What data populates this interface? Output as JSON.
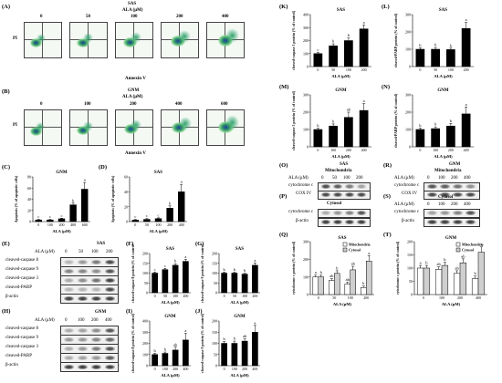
{
  "panels": {
    "A": "(A)",
    "B": "(B)",
    "C": "(C)",
    "D": "(D)",
    "E": "(E)",
    "F": "(F)",
    "G": "(G)",
    "H": "(H)",
    "I": "(I)",
    "J": "(J)",
    "K": "(K)",
    "L": "(L)",
    "M": "(M)",
    "N": "(N)",
    "O": "(O)",
    "P": "(P)",
    "Q": "(Q)",
    "R": "(R)",
    "S": "(S)",
    "T": "(T)"
  },
  "flowA": {
    "cell": "SAS",
    "ala": "ALA (μM)",
    "doses": [
      "0",
      "50",
      "100",
      "200",
      "400"
    ],
    "ylabel": "PI",
    "xlabel": "Annexin V"
  },
  "flowB": {
    "cell": "GNM",
    "ala": "ALA (μM)",
    "doses": [
      "0",
      "100",
      "200",
      "400",
      "600"
    ],
    "ylabel": "PI",
    "xlabel": "Annexin V"
  },
  "wbE": {
    "cell": "SAS",
    "ala": "ALA (μM)",
    "doses": [
      "0",
      "50",
      "100",
      "200"
    ],
    "rows": [
      "cleaved-caspase 8",
      "cleaved-caspase 9",
      "cleaved-caspase 3",
      "cleaved-PARP",
      "β-actin"
    ]
  },
  "wbH": {
    "cell": "GNM",
    "ala": "ALA (μM)",
    "doses": [
      "0",
      "100",
      "200",
      "400"
    ],
    "rows": [
      "cleaved-caspase 8",
      "cleaved-caspase 9",
      "cleaved-caspase 3",
      "cleaved-PARP",
      "β-actin"
    ]
  },
  "wbO": {
    "cell": "SAS",
    "ala": "ALA (μM)",
    "doses": [
      "0",
      "50",
      "100",
      "200"
    ],
    "fraction": "Mitochondria",
    "rows": [
      "cytochrome c",
      "COX IV"
    ]
  },
  "wbP": {
    "fraction": "Cytosol",
    "rows": [
      "cytochrome c",
      "β-actin"
    ]
  },
  "wbR": {
    "cell": "GNM",
    "ala": "ALA (μM)",
    "doses": [
      "0",
      "100",
      "200",
      "400"
    ],
    "fraction": "Mitochondria",
    "rows": [
      "cytochrome c",
      "COX IV"
    ]
  },
  "wbS": {
    "ala": "ALA (μM)",
    "doses": [
      "0",
      "100",
      "200",
      "400"
    ],
    "fraction": "Cytosol",
    "rows": [
      "cytochrome c",
      "β-actin"
    ]
  },
  "chart_data": [
    {
      "id": "C",
      "type": "bar",
      "title": "GNM",
      "categories": [
        "0",
        "100",
        "200",
        "400",
        "600"
      ],
      "values": [
        3,
        3,
        5,
        30,
        58
      ],
      "errors": [
        1,
        1,
        1,
        3,
        12
      ],
      "letters": [
        "c",
        "c",
        "c",
        "b",
        "a"
      ],
      "ylabel": "Apoptosis (% of apoptotic cells)",
      "xlabel": "ALA (μM)",
      "ylim": [
        0,
        80
      ],
      "yticks": [
        "0",
        "20",
        "40",
        "60",
        "80"
      ]
    },
    {
      "id": "D",
      "type": "bar",
      "title": "SAS",
      "categories": [
        "0",
        "50",
        "100",
        "200",
        "400"
      ],
      "values": [
        2,
        3,
        4,
        18,
        40
      ],
      "errors": [
        1,
        1,
        1,
        3,
        10
      ],
      "letters": [
        "c",
        "c",
        "c",
        "b",
        "a"
      ],
      "ylabel": "Apoptosis (% of apoptotic cells)",
      "xlabel": "ALA (μM)",
      "ylim": [
        0,
        60
      ],
      "yticks": [
        "0",
        "20",
        "40",
        "60"
      ]
    },
    {
      "id": "F",
      "type": "bar",
      "title": "SAS",
      "categories": [
        "0",
        "50",
        "100",
        "200"
      ],
      "values": [
        100,
        118,
        140,
        160
      ],
      "errors": [
        5,
        6,
        8,
        10
      ],
      "letters": [
        "c",
        "c",
        "b",
        "a"
      ],
      "ylabel": "cleaved-caspase 8 protein (% of control)",
      "xlabel": "ALA (μM)",
      "ylim": [
        0,
        200
      ],
      "yticks": [
        "0",
        "50",
        "100",
        "150",
        "200"
      ]
    },
    {
      "id": "G",
      "type": "bar",
      "title": "SAS",
      "categories": [
        "0",
        "50",
        "100",
        "200"
      ],
      "values": [
        100,
        100,
        95,
        140
      ],
      "errors": [
        5,
        5,
        5,
        12
      ],
      "letters": [
        "b",
        "b",
        "b",
        "a"
      ],
      "ylabel": "cleaved-caspase 9 protein (% of control)",
      "xlabel": "ALA (μM)",
      "ylim": [
        0,
        200
      ],
      "yticks": [
        "0",
        "50",
        "100",
        "150",
        "200"
      ]
    },
    {
      "id": "I",
      "type": "bar",
      "title": "GNM",
      "categories": [
        "0",
        "100",
        "200",
        "400"
      ],
      "values": [
        100,
        110,
        140,
        230
      ],
      "errors": [
        10,
        12,
        25,
        60
      ],
      "letters": [
        "b",
        "b",
        "ab",
        "a"
      ],
      "ylabel": "cleaved-caspase 8 protein (% of control)",
      "xlabel": "ALA (μM)",
      "ylim": [
        0,
        400
      ],
      "yticks": [
        "0",
        "100",
        "200",
        "300",
        "400"
      ]
    },
    {
      "id": "J",
      "type": "bar",
      "title": "GNM",
      "categories": [
        "0",
        "100",
        "200",
        "400"
      ],
      "values": [
        100,
        100,
        110,
        150
      ],
      "errors": [
        8,
        10,
        10,
        30
      ],
      "letters": [
        "b",
        "b",
        "ab",
        "a"
      ],
      "ylabel": "cleaved-caspase 9 protein (% of control)",
      "xlabel": "ALA (μM)",
      "ylim": [
        0,
        200
      ],
      "yticks": [
        "0",
        "50",
        "100",
        "150",
        "200"
      ]
    },
    {
      "id": "K",
      "type": "bar",
      "title": "SAS",
      "categories": [
        "0",
        "50",
        "100",
        "200"
      ],
      "values": [
        100,
        160,
        200,
        290
      ],
      "errors": [
        8,
        15,
        20,
        30
      ],
      "letters": [
        "c",
        "b",
        "b",
        "a"
      ],
      "ylabel": "cleaved-caspase 3 protein (% of control)",
      "xlabel": "ALA (μM)",
      "ylim": [
        0,
        400
      ],
      "yticks": [
        "0",
        "100",
        "200",
        "300",
        "400"
      ]
    },
    {
      "id": "L",
      "type": "bar",
      "title": "SAS",
      "categories": [
        "0",
        "50",
        "100",
        "200"
      ],
      "values": [
        100,
        100,
        98,
        220
      ],
      "errors": [
        8,
        10,
        8,
        35
      ],
      "letters": [
        "b",
        "b",
        "b",
        "a"
      ],
      "ylabel": "cleaved-PARP protein (% of control)",
      "xlabel": "ALA (μM)",
      "ylim": [
        0,
        300
      ],
      "yticks": [
        "0",
        "100",
        "200",
        "300"
      ]
    },
    {
      "id": "M",
      "type": "bar",
      "title": "GNM",
      "categories": [
        "0",
        "100",
        "200",
        "400"
      ],
      "values": [
        100,
        120,
        170,
        210
      ],
      "errors": [
        8,
        12,
        30,
        40
      ],
      "letters": [
        "b",
        "b",
        "ab",
        "a"
      ],
      "ylabel": "cleaved-caspase 3 protein (% of control)",
      "xlabel": "ALA (μM)",
      "ylim": [
        0,
        300
      ],
      "yticks": [
        "0",
        "100",
        "200",
        "300"
      ]
    },
    {
      "id": "N",
      "type": "bar",
      "title": "GNM",
      "categories": [
        "0",
        "100",
        "200",
        "400"
      ],
      "values": [
        100,
        105,
        120,
        190
      ],
      "errors": [
        8,
        10,
        15,
        40
      ],
      "letters": [
        "b",
        "b",
        "b",
        "a"
      ],
      "ylabel": "cleaved-PARP protein (% of control)",
      "xlabel": "ALA (μM)",
      "ylim": [
        0,
        300
      ],
      "yticks": [
        "0",
        "100",
        "200",
        "300"
      ]
    },
    {
      "id": "Q",
      "type": "bar",
      "title": "SAS",
      "categories": [
        "0",
        "50",
        "100",
        "200"
      ],
      "series": [
        {
          "name": "Mitochondria",
          "values": [
            100,
            80,
            60,
            40
          ],
          "errors": [
            10,
            10,
            10,
            8
          ],
          "letters": [
            "a",
            "ab",
            "ab",
            "b"
          ]
        },
        {
          "name": "Cytosol",
          "values": [
            100,
            120,
            140,
            190
          ],
          "errors": [
            10,
            15,
            20,
            30
          ],
          "letters": [
            "b",
            "b",
            "ab",
            "a"
          ]
        }
      ],
      "ylabel": "cytochrome c protein (% of control)",
      "xlabel": "ALA (μM)",
      "ylim": [
        0,
        300
      ],
      "yticks": [
        "0",
        "100",
        "200",
        "300"
      ]
    },
    {
      "id": "T",
      "type": "bar",
      "title": "GNM",
      "categories": [
        "0",
        "100",
        "200",
        "400"
      ],
      "series": [
        {
          "name": "Mitochondria",
          "values": [
            100,
            95,
            80,
            60
          ],
          "errors": [
            10,
            10,
            10,
            10
          ],
          "letters": [
            "a",
            "ab",
            "ab",
            "b"
          ]
        },
        {
          "name": "Cytosol",
          "values": [
            100,
            110,
            120,
            160
          ],
          "errors": [
            10,
            12,
            15,
            20
          ],
          "letters": [
            "b",
            "b",
            "ab",
            "a"
          ]
        }
      ],
      "ylabel": "cytochrome c protein (% of control)",
      "xlabel": "ALA (μM)",
      "ylim": [
        0,
        200
      ],
      "yticks": [
        "0",
        "50",
        "100",
        "150",
        "200"
      ]
    }
  ]
}
